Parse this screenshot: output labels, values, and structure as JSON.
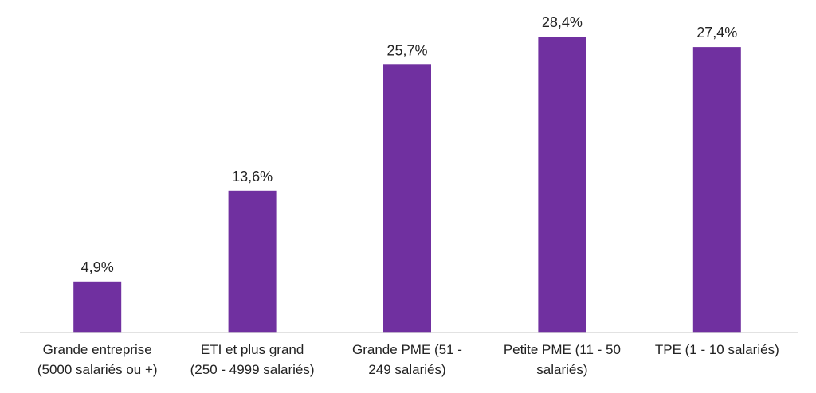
{
  "chart_data": {
    "type": "bar",
    "categories": [
      [
        "Grande entreprise",
        "(5000 salariés ou +)"
      ],
      [
        "ETI et plus grand",
        "(250 - 4999 salariés)"
      ],
      [
        "Grande PME (51 -",
        "249 salariés)"
      ],
      [
        "Petite PME (11 - 50",
        "salariés)"
      ],
      [
        "TPE (1 - 10 salariés)"
      ]
    ],
    "values": [
      4.9,
      13.6,
      25.7,
      28.4,
      27.4
    ],
    "value_labels": [
      "4,9%",
      "13,6%",
      "25,7%",
      "28,4%",
      "27,4%"
    ],
    "ylim": [
      0,
      30
    ],
    "grid": false,
    "legend": "none",
    "colors": {
      "bar": "#7030A0",
      "axis": "#d9d9d9",
      "text": "#222222"
    }
  }
}
